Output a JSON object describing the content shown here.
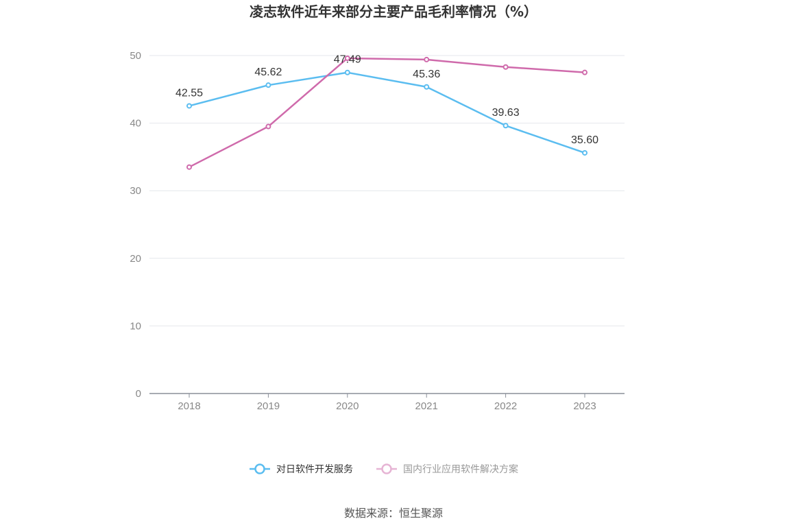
{
  "chart_data": {
    "type": "line",
    "title": "凌志软件近年来部分主要产品毛利率情况（%）",
    "categories": [
      "2018",
      "2019",
      "2020",
      "2021",
      "2022",
      "2023"
    ],
    "ylim": [
      0,
      50
    ],
    "yticks": [
      0,
      10,
      20,
      30,
      40,
      50
    ],
    "grid": true,
    "legend_position": "bottom",
    "series": [
      {
        "name": "对日软件开发服务",
        "color": "#5bbdf0",
        "values": [
          42.55,
          45.62,
          47.49,
          45.36,
          39.63,
          35.6
        ],
        "labels": [
          "42.55",
          "45.62",
          "47.49",
          "45.36",
          "39.63",
          "35.60"
        ],
        "legend_active": true
      },
      {
        "name": "国内行业应用软件解决方案",
        "color": "#cf6aab",
        "values": [
          33.5,
          39.5,
          49.6,
          49.4,
          48.3,
          47.5
        ],
        "legend_active": false
      }
    ]
  },
  "source_text": "数据来源：恒生聚源"
}
